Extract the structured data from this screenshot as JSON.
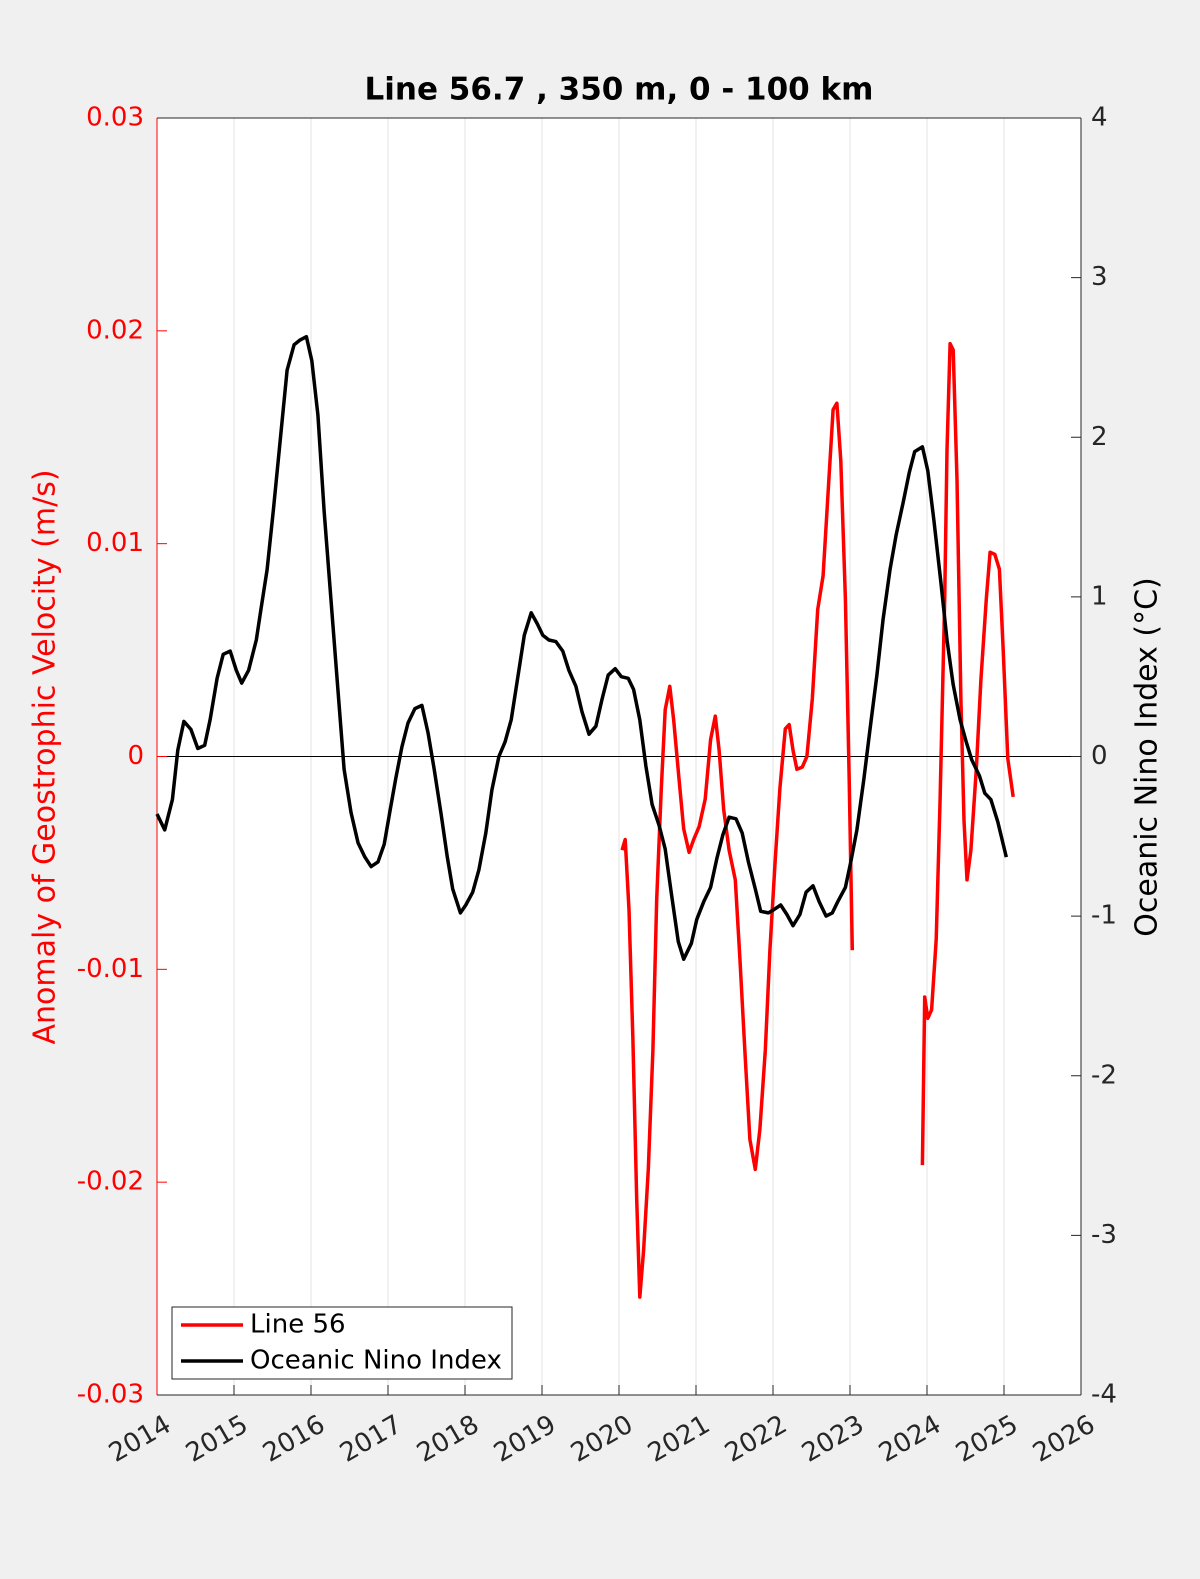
{
  "chart_data": {
    "type": "line",
    "title": "Line 56.7 , 350 m, 0 - 100 km",
    "ylabel": "Anomaly of Geostrophic Velocity (m/s)",
    "y2label": "Oceanic Nino Index (°C)",
    "xlim": [
      2014,
      2026
    ],
    "xticks": [
      2014,
      2015,
      2016,
      2017,
      2018,
      2019,
      2020,
      2021,
      2022,
      2023,
      2024,
      2025,
      2026
    ],
    "ylim": [
      -0.03,
      0.03
    ],
    "yticks": [
      -0.03,
      -0.02,
      -0.01,
      0,
      0.01,
      0.02,
      0.03
    ],
    "y2lim": [
      -4,
      4
    ],
    "y2ticks": [
      -4,
      -3,
      -2,
      -1,
      0,
      1,
      2,
      3,
      4
    ],
    "grid": true,
    "legend": "lower left",
    "series": [
      {
        "name": "Line 56",
        "color": "#ff0000",
        "axis": "y",
        "x": [
          2020.04,
          2020.08,
          2020.13,
          2020.18,
          2020.23,
          2020.27,
          2020.32,
          2020.38,
          2020.44,
          2020.49,
          2020.55,
          2020.6,
          2020.66,
          2020.71,
          2020.78,
          2020.84,
          2020.91,
          2020.97,
          2021.04,
          2021.12,
          2021.19,
          2021.25,
          2021.3,
          2021.36,
          2021.43,
          2021.51,
          2021.57,
          2021.64,
          2021.7,
          2021.77,
          2021.83,
          2021.9,
          2021.96,
          2022.03,
          2022.09,
          2022.16,
          2022.21,
          2022.26,
          2022.31,
          2022.38,
          2022.44,
          2022.51,
          2022.58,
          2022.65,
          2022.71,
          2022.78,
          2022.83,
          2022.88,
          2022.94,
          2022.99,
          2023.03,
          2023.5,
          2023.94,
          2023.97,
          2024.01,
          2024.06,
          2024.12,
          2024.17,
          2024.23,
          2024.26,
          2024.3,
          2024.34,
          2024.39,
          2024.44,
          2024.48,
          2024.52,
          2024.57,
          2024.64,
          2024.7,
          2024.77,
          2024.82,
          2024.88,
          2024.94,
          2024.99,
          2025.05,
          2025.12
        ],
        "values": [
          -0.0044,
          -0.0039,
          -0.0072,
          -0.0133,
          -0.0208,
          -0.0254,
          -0.0232,
          -0.0194,
          -0.0138,
          -0.0067,
          -0.0015,
          0.0022,
          0.0033,
          0.0017,
          -0.0011,
          -0.0034,
          -0.0045,
          -0.0039,
          -0.0033,
          -0.002,
          0.0008,
          0.0019,
          0.0003,
          -0.0025,
          -0.0044,
          -0.0058,
          -0.0095,
          -0.0142,
          -0.018,
          -0.0194,
          -0.0175,
          -0.0138,
          -0.0091,
          -0.0048,
          -0.0015,
          0.0013,
          0.0015,
          0.0003,
          -0.0006,
          -0.0005,
          0,
          0.0027,
          0.0069,
          0.0085,
          0.0121,
          0.0163,
          0.0166,
          0.0139,
          0.0074,
          -0.0011,
          -0.0091,
          null,
          -0.0192,
          -0.0113,
          -0.0123,
          -0.0119,
          -0.0086,
          -0.002,
          0.0074,
          0.0144,
          0.0194,
          0.0191,
          0.013,
          0.0027,
          -0.003,
          -0.0058,
          -0.0044,
          -0.0006,
          0.0036,
          0.0074,
          0.0096,
          0.0095,
          0.0088,
          0.005,
          -0.0001,
          -0.0019
        ]
      },
      {
        "name": "Oceanic Nino Index",
        "color": "#000000",
        "axis": "y2",
        "x": [
          2014.0,
          2014.1,
          2014.2,
          2014.27,
          2014.35,
          2014.44,
          2014.53,
          2014.62,
          2014.69,
          2014.78,
          2014.86,
          2014.95,
          2015.03,
          2015.1,
          2015.19,
          2015.29,
          2015.35,
          2015.43,
          2015.51,
          2015.6,
          2015.69,
          2015.78,
          2015.86,
          2015.94,
          2016.01,
          2016.09,
          2016.17,
          2016.26,
          2016.35,
          2016.43,
          2016.52,
          2016.61,
          2016.7,
          2016.78,
          2016.87,
          2016.95,
          2017.03,
          2017.1,
          2017.18,
          2017.26,
          2017.35,
          2017.44,
          2017.52,
          2017.6,
          2017.69,
          2017.77,
          2017.84,
          2017.94,
          2018.01,
          2018.1,
          2018.18,
          2018.27,
          2018.35,
          2018.44,
          2018.52,
          2018.6,
          2018.68,
          2018.77,
          2018.86,
          2018.94,
          2019.01,
          2019.09,
          2019.18,
          2019.27,
          2019.35,
          2019.44,
          2019.52,
          2019.61,
          2019.7,
          2019.78,
          2019.86,
          2019.95,
          2020.03,
          2020.12,
          2020.19,
          2020.27,
          2020.35,
          2020.43,
          2020.52,
          2020.6,
          2020.68,
          2020.77,
          2020.84,
          2020.94,
          2021.01,
          2021.1,
          2021.19,
          2021.27,
          2021.35,
          2021.43,
          2021.52,
          2021.6,
          2021.68,
          2021.77,
          2021.84,
          2021.94,
          2022.01,
          2022.1,
          2022.18,
          2022.26,
          2022.35,
          2022.43,
          2022.52,
          2022.6,
          2022.69,
          2022.77,
          2022.84,
          2022.94,
          2023.01,
          2023.09,
          2023.18,
          2023.26,
          2023.35,
          2023.43,
          2023.52,
          2023.6,
          2023.69,
          2023.77,
          2023.84,
          2023.94,
          2024.01,
          2024.09,
          2024.18,
          2024.26,
          2024.34,
          2024.43,
          2024.51,
          2024.58,
          2024.68,
          2024.75,
          2024.83,
          2024.92,
          2025.03
        ],
        "values": [
          -0.36,
          -0.46,
          -0.27,
          0.04,
          0.22,
          0.17,
          0.05,
          0.07,
          0.23,
          0.49,
          0.64,
          0.66,
          0.54,
          0.46,
          0.54,
          0.73,
          0.92,
          1.17,
          1.54,
          1.98,
          2.42,
          2.58,
          2.61,
          2.63,
          2.48,
          2.14,
          1.54,
          0.98,
          0.42,
          -0.08,
          -0.35,
          -0.54,
          -0.63,
          -0.69,
          -0.66,
          -0.55,
          -0.33,
          -0.14,
          0.06,
          0.21,
          0.3,
          0.32,
          0.15,
          -0.08,
          -0.36,
          -0.63,
          -0.83,
          -0.98,
          -0.93,
          -0.85,
          -0.71,
          -0.48,
          -0.21,
          0,
          0.09,
          0.23,
          0.48,
          0.76,
          0.9,
          0.83,
          0.76,
          0.73,
          0.72,
          0.66,
          0.54,
          0.44,
          0.28,
          0.14,
          0.19,
          0.36,
          0.51,
          0.55,
          0.5,
          0.49,
          0.42,
          0.23,
          -0.06,
          -0.3,
          -0.43,
          -0.58,
          -0.86,
          -1.16,
          -1.27,
          -1.17,
          -1.02,
          -0.91,
          -0.82,
          -0.64,
          -0.49,
          -0.38,
          -0.39,
          -0.48,
          -0.66,
          -0.83,
          -0.97,
          -0.98,
          -0.96,
          -0.93,
          -0.99,
          -1.06,
          -0.99,
          -0.85,
          -0.81,
          -0.91,
          -1,
          -0.98,
          -0.91,
          -0.82,
          -0.66,
          -0.46,
          -0.14,
          0.17,
          0.51,
          0.86,
          1.17,
          1.39,
          1.59,
          1.78,
          1.91,
          1.94,
          1.79,
          1.48,
          1.09,
          0.73,
          0.45,
          0.23,
          0.09,
          -0.02,
          -0.12,
          -0.23,
          -0.27,
          -0.41,
          -0.63
        ]
      }
    ]
  }
}
